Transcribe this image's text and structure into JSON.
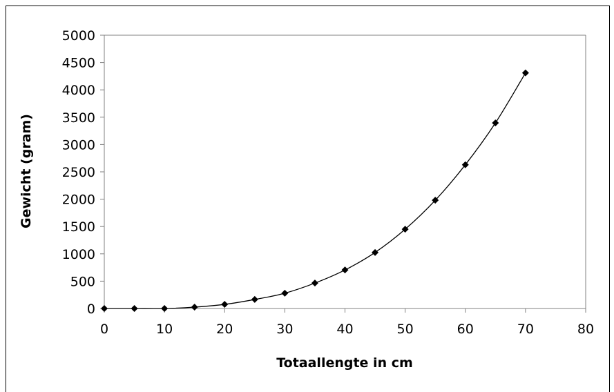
{
  "chart_data": {
    "type": "scatter",
    "title": "",
    "xlabel": "Totaallengte in cm",
    "ylabel": "Gewicht (gram)",
    "xlim": [
      0,
      80
    ],
    "ylim": [
      0,
      5000
    ],
    "xticks": [
      0,
      10,
      20,
      30,
      40,
      50,
      60,
      70,
      80
    ],
    "yticks": [
      0,
      500,
      1000,
      1500,
      2000,
      2500,
      3000,
      3500,
      4000,
      4500,
      5000
    ],
    "x": [
      0,
      5,
      10,
      15,
      20,
      25,
      30,
      35,
      40,
      45,
      50,
      55,
      60,
      65,
      70
    ],
    "y": [
      0,
      0,
      0,
      25,
      75,
      165,
      280,
      465,
      705,
      1025,
      1450,
      1980,
      2630,
      3395,
      4310
    ],
    "marker": "diamond",
    "line": "smooth",
    "grid": false,
    "legend": "none",
    "colors": {
      "marker": "#000000",
      "line": "#000000",
      "axis": "#808080"
    }
  }
}
